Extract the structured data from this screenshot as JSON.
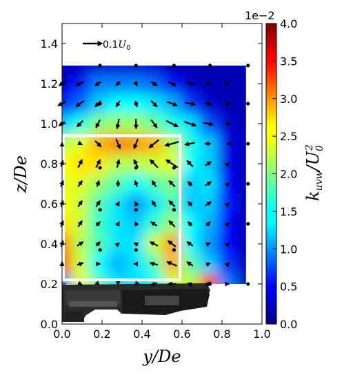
{
  "chart_data": {
    "type": "heatmap",
    "title": "",
    "xlabel": "y/De",
    "ylabel": "z/De",
    "xlim": [
      0.0,
      1.0
    ],
    "ylim": [
      0.0,
      1.5
    ],
    "x_ticks": [
      "0.0",
      "0.2",
      "0.4",
      "0.6",
      "0.8",
      "1.0"
    ],
    "y_ticks": [
      "0.0",
      "0.2",
      "0.4",
      "0.6",
      "0.8",
      "1.0",
      "1.2",
      "1.4"
    ],
    "colorbar": {
      "label": "k_uvw/U_0^2",
      "label_main": "k",
      "label_sub": "uvw",
      "label_den": "/U",
      "label_den_sub": "0",
      "label_den_sup": "2",
      "multiplier": "1e−2",
      "range": [
        0.0,
        4.0
      ],
      "ticks": [
        "0.0",
        "0.5",
        "1.0",
        "1.5",
        "2.0",
        "2.5",
        "3.0",
        "3.5",
        "4.0"
      ],
      "colormap": "jet"
    },
    "reference_vector": {
      "label": "0.1",
      "label_italic": "U",
      "label_sub": "0",
      "magnitude": 0.1
    },
    "y_grid": [
      0.2,
      0.3,
      0.4,
      0.5,
      0.6,
      0.7,
      0.8,
      0.9,
      1.0,
      1.1,
      1.2,
      1.29
    ],
    "x_grid": [
      0.0,
      0.09,
      0.18,
      0.28,
      0.37,
      0.46,
      0.55,
      0.64,
      0.73,
      0.83,
      0.92
    ],
    "kuvw_e2": [
      [
        1.0,
        2.4,
        1.8,
        1.4,
        1.4,
        1.5,
        2.3,
        2.2,
        3.2,
        1.0,
        0.2
      ],
      [
        3.2,
        2.3,
        1.5,
        1.2,
        1.4,
        1.8,
        2.8,
        1.9,
        1.3,
        0.7,
        0.2
      ],
      [
        3.0,
        2.2,
        1.8,
        1.4,
        1.4,
        2.3,
        2.9,
        1.5,
        1.1,
        0.5,
        0.2
      ],
      [
        2.6,
        2.3,
        1.7,
        1.4,
        1.3,
        1.7,
        2.1,
        1.5,
        1.2,
        0.5,
        0.2
      ],
      [
        2.5,
        2.3,
        1.8,
        1.4,
        1.1,
        1.4,
        1.8,
        1.3,
        1.3,
        0.6,
        0.2
      ],
      [
        2.4,
        2.4,
        2.1,
        1.8,
        1.5,
        1.8,
        2.0,
        1.3,
        1.4,
        0.5,
        0.2
      ],
      [
        2.5,
        2.6,
        2.6,
        2.2,
        2.2,
        2.3,
        2.4,
        1.5,
        1.3,
        0.4,
        0.2
      ],
      [
        2.2,
        2.4,
        2.8,
        3.0,
        2.9,
        2.8,
        2.2,
        1.6,
        1.3,
        0.4,
        0.2
      ],
      [
        1.3,
        1.6,
        2.0,
        2.1,
        2.1,
        1.9,
        1.6,
        1.4,
        0.8,
        0.3,
        0.2
      ],
      [
        0.6,
        0.9,
        1.3,
        1.5,
        1.5,
        1.4,
        1.2,
        0.7,
        0.3,
        0.2,
        0.2
      ],
      [
        0.3,
        0.6,
        1.0,
        1.0,
        1.0,
        0.9,
        0.6,
        0.3,
        0.2,
        0.2,
        0.2
      ],
      [
        0.2,
        0.2,
        0.3,
        0.3,
        0.3,
        0.3,
        0.2,
        0.2,
        0.2,
        0.2,
        0.2
      ]
    ],
    "vectors_u": [
      [
        0.0,
        0.02,
        0.01,
        0.0,
        -0.01,
        -0.03,
        -0.04,
        -0.02,
        0.02,
        0.01,
        0.0
      ],
      [
        0.0,
        0.03,
        0.02,
        0.0,
        -0.02,
        -0.04,
        -0.05,
        -0.03,
        0.02,
        0.01,
        0.0
      ],
      [
        0.01,
        0.03,
        0.02,
        0.01,
        -0.02,
        -0.04,
        -0.04,
        -0.03,
        0.02,
        0.01,
        0.0
      ],
      [
        0.01,
        0.02,
        0.02,
        0.01,
        -0.01,
        -0.03,
        -0.03,
        -0.02,
        0.02,
        0.01,
        0.0
      ],
      [
        0.01,
        0.02,
        0.02,
        0.01,
        -0.01,
        -0.02,
        -0.03,
        -0.02,
        0.03,
        0.01,
        0.0
      ],
      [
        0.01,
        0.02,
        0.01,
        0.0,
        -0.01,
        -0.02,
        -0.03,
        -0.02,
        0.03,
        0.01,
        0.0
      ],
      [
        0.01,
        0.02,
        0.02,
        0.01,
        -0.02,
        -0.04,
        -0.06,
        -0.03,
        0.03,
        0.01,
        0.0
      ],
      [
        0.0,
        0.02,
        0.03,
        0.02,
        -0.02,
        -0.05,
        -0.07,
        -0.05,
        -0.03,
        -0.01,
        0.0
      ],
      [
        -0.03,
        -0.03,
        -0.02,
        -0.01,
        0.0,
        0.03,
        0.06,
        0.06,
        0.05,
        0.02,
        0.0
      ],
      [
        -0.04,
        -0.04,
        -0.03,
        -0.02,
        0.01,
        0.03,
        0.05,
        0.05,
        0.03,
        0.02,
        0.0
      ],
      [
        -0.03,
        -0.04,
        -0.03,
        -0.02,
        0.01,
        0.03,
        0.04,
        0.04,
        0.02,
        0.01,
        0.0
      ],
      [
        0.0,
        0.0,
        0.0,
        0.0,
        0.0,
        0.0,
        0.0,
        0.0,
        0.0,
        0.0,
        0.0
      ]
    ],
    "vectors_v": [
      [
        0.0,
        -0.01,
        -0.01,
        -0.01,
        -0.01,
        -0.01,
        0.0,
        0.01,
        0.02,
        0.0,
        0.0
      ],
      [
        0.02,
        0.01,
        0.0,
        0.0,
        0.0,
        0.01,
        0.02,
        0.02,
        0.01,
        0.01,
        0.0
      ],
      [
        0.03,
        0.02,
        0.02,
        0.01,
        0.01,
        0.02,
        0.03,
        0.02,
        0.01,
        0.01,
        0.0
      ],
      [
        0.03,
        0.03,
        0.02,
        0.02,
        0.02,
        0.02,
        0.03,
        0.02,
        0.02,
        0.01,
        0.0
      ],
      [
        0.03,
        0.03,
        0.03,
        0.02,
        0.02,
        0.03,
        0.03,
        0.02,
        0.02,
        0.01,
        0.0
      ],
      [
        0.03,
        0.03,
        0.03,
        0.03,
        0.03,
        0.03,
        0.03,
        0.02,
        0.02,
        0.01,
        0.0
      ],
      [
        0.03,
        0.04,
        0.04,
        0.04,
        0.04,
        0.04,
        0.04,
        0.03,
        0.02,
        0.01,
        0.0
      ],
      [
        0.01,
        -0.01,
        -0.03,
        -0.05,
        -0.05,
        -0.04,
        -0.02,
        -0.01,
        0.0,
        0.0,
        0.0
      ],
      [
        -0.02,
        -0.03,
        -0.04,
        -0.05,
        -0.05,
        -0.04,
        -0.03,
        -0.02,
        -0.01,
        0.0,
        0.0
      ],
      [
        -0.02,
        -0.03,
        -0.03,
        -0.03,
        -0.03,
        -0.03,
        -0.02,
        -0.01,
        -0.01,
        0.0,
        0.0
      ],
      [
        -0.02,
        -0.02,
        -0.02,
        -0.02,
        -0.02,
        -0.02,
        -0.02,
        -0.01,
        -0.01,
        0.0,
        0.0
      ],
      [
        0.0,
        0.0,
        0.0,
        0.0,
        0.0,
        0.0,
        0.0,
        0.0,
        0.0,
        0.0,
        0.0
      ]
    ],
    "measurement_points": [
      [
        0.19,
        1.29
      ],
      [
        0.37,
        1.29
      ],
      [
        0.56,
        1.29
      ],
      [
        0.74,
        1.29
      ],
      [
        0.93,
        1.29
      ],
      [
        0.19,
        1.1
      ],
      [
        0.93,
        1.1
      ],
      [
        0.93,
        0.9
      ],
      [
        0.93,
        0.7
      ],
      [
        0.93,
        0.5
      ],
      [
        0.19,
        0.78
      ],
      [
        0.37,
        0.78
      ],
      [
        0.56,
        0.78
      ],
      [
        0.19,
        0.57
      ],
      [
        0.37,
        0.57
      ],
      [
        0.56,
        0.57
      ],
      [
        0.19,
        0.37
      ],
      [
        0.37,
        0.37
      ],
      [
        0.56,
        0.37
      ],
      [
        0.74,
        0.2
      ],
      [
        0.93,
        0.2
      ]
    ],
    "highlight_box": {
      "x": [
        0.0,
        0.59
      ],
      "y": [
        0.22,
        0.94
      ],
      "color": "#ffffff"
    }
  }
}
